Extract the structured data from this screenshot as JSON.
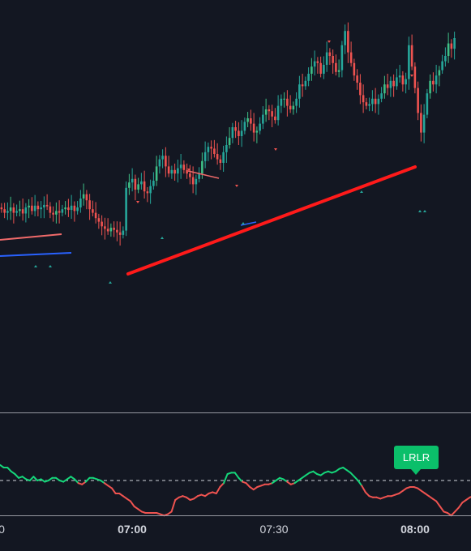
{
  "colors": {
    "background": "#131722",
    "up_candle": "#26a69a",
    "up_candle_bright": "#3fbf86",
    "down_candle": "#ef5350",
    "trendline": "#ff1a1a",
    "blue_line": "#2962ff",
    "osc_up": "#15d67a",
    "osc_down": "#ef5350",
    "divider": "#9598a1"
  },
  "time_axis": {
    "ticks": [
      {
        "label": "0",
        "bold": false
      },
      {
        "label": "07:00",
        "bold": true
      },
      {
        "label": "07:30",
        "bold": false
      },
      {
        "label": "08:00",
        "bold": true
      }
    ]
  },
  "badge": {
    "label": "LRLR"
  },
  "chart_data": [
    {
      "type": "candlestick",
      "title": "",
      "x_labels": [
        "0",
        "07:00",
        "07:30",
        "08:00"
      ],
      "ylim": [
        0,
        100
      ],
      "grid": false,
      "closes": [
        72.0,
        71.0,
        71.5,
        72.5,
        71.0,
        71.5,
        72.0,
        70.8,
        72.5,
        73.0,
        71.5,
        73.0,
        72.0,
        72.5,
        73.2,
        72.8,
        71.0,
        70.5,
        71.5,
        71.0,
        72.0,
        72.5,
        71.8,
        73.0,
        71.5,
        72.5,
        75.0,
        76.2,
        74.5,
        72.0,
        71.0,
        69.5,
        68.5,
        67.2,
        66.5,
        65.8,
        66.8,
        66.2,
        65.5,
        64.8,
        66.0,
        78.0,
        79.5,
        80.5,
        77.5,
        79.0,
        79.8,
        77.0,
        76.5,
        78.5,
        80.0,
        84.0,
        86.0,
        87.0,
        84.0,
        82.0,
        83.0,
        82.0,
        83.5,
        84.5,
        83.0,
        82.0,
        81.0,
        79.0,
        80.5,
        82.0,
        85.5,
        88.0,
        89.5,
        89.0,
        87.5,
        86.0,
        85.0,
        88.0,
        90.0,
        92.0,
        95.0,
        94.0,
        92.5,
        94.0,
        96.5,
        97.5,
        96.0,
        93.5,
        94.0,
        96.0,
        98.5,
        100.0,
        99.5,
        98.0,
        97.0,
        101.0,
        103.0,
        103.0,
        101.0,
        100.0,
        101.0,
        103.0,
        107.0,
        106.5,
        108.0,
        110.0,
        112.0,
        113.5,
        113.0,
        110.0,
        112.5,
        116.0,
        115.0,
        113.0,
        110.5,
        111.0,
        118.0,
        122.0,
        116.0,
        113.0,
        109.5,
        107.5,
        104.0,
        102.0,
        101.0,
        101.5,
        103.0,
        101.5,
        103.0,
        104.5,
        107.0,
        106.0,
        108.0,
        106.5,
        109.0,
        109.5,
        107.0,
        108.5,
        118.0,
        112.0,
        106.0,
        99.0,
        93.5,
        98.5,
        104.5,
        108.0,
        107.0,
        109.5,
        111.0,
        113.5,
        115.0,
        118.5,
        117.0,
        120.0
      ]
    },
    {
      "type": "line",
      "title": "",
      "ylim": [
        0,
        100
      ],
      "threshold": 50,
      "values": [
        62,
        60,
        60,
        57,
        55,
        52,
        53,
        51,
        50,
        53,
        50,
        51,
        49,
        50,
        52,
        52,
        50,
        49,
        51,
        53,
        51,
        48,
        47,
        49,
        52,
        52,
        51,
        50,
        48,
        46,
        44,
        40,
        40,
        38,
        36,
        34,
        30,
        28,
        26,
        25,
        25,
        25,
        25,
        24,
        23,
        24,
        26,
        35,
        37,
        38,
        37,
        35,
        36,
        38,
        39,
        38,
        40,
        41,
        40,
        45,
        48,
        55,
        56,
        56,
        52,
        49,
        48,
        45,
        43,
        45,
        46,
        47,
        47,
        48,
        50,
        52,
        51,
        49,
        47,
        48,
        50,
        52,
        54,
        56,
        57,
        55,
        54,
        56,
        57,
        56,
        57,
        59,
        60,
        58,
        56,
        53,
        50,
        46,
        41,
        38,
        37,
        37,
        36,
        37,
        38,
        38,
        39,
        40,
        42,
        44,
        45,
        45,
        44,
        42,
        40,
        38,
        36,
        34,
        30,
        26,
        25,
        23,
        26,
        29,
        33,
        35,
        37,
        38
      ]
    }
  ]
}
